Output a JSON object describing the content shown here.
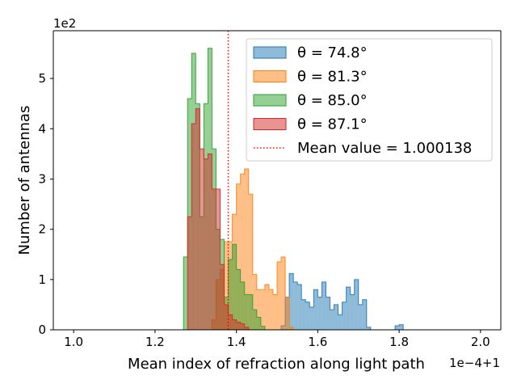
{
  "chart_data": {
    "type": "histogram",
    "xlabel": "Mean index of refraction along light path",
    "ylabel": "Number of antennas",
    "x_offset_label": "1e−4+1",
    "y_scale_label": "1e2",
    "xlim": [
      0.95,
      2.05
    ],
    "ylim": [
      0,
      5.95
    ],
    "xticks": [
      "1.0",
      "1.2",
      "1.4",
      "1.6",
      "1.8",
      "2.0"
    ],
    "xtick_values": [
      1.0,
      1.2,
      1.4,
      1.6,
      1.8,
      2.0
    ],
    "yticks": [
      "0",
      "1",
      "2",
      "3",
      "4",
      "5"
    ],
    "ytick_values": [
      0,
      1,
      2,
      3,
      4,
      5
    ],
    "bins": {
      "start": 1.0,
      "width": 0.01
    },
    "series": [
      {
        "name": "θ = 74.8°",
        "color": "#1f77b4",
        "start": 1.51,
        "values": [
          0.08,
          0.65,
          1.12,
          0.95,
          0.9,
          0.6,
          0.55,
          0.45,
          0.8,
          0.65,
          0.95,
          0.65,
          0.4,
          0.5,
          0.3,
          0.55,
          0.85,
          0.7,
          1.0,
          0.5,
          0.6,
          0.05,
          0,
          0,
          0,
          0,
          0,
          0,
          0.08,
          0.1,
          0
        ]
      },
      {
        "name": "θ = 81.3°",
        "color": "#ff7f0e",
        "start": 1.34,
        "values": [
          0.2,
          1.0,
          1.2,
          1.75,
          1.75,
          2.3,
          2.9,
          3.1,
          3.2,
          2.7,
          1.1,
          0.8,
          0.8,
          0.9,
          0.8,
          0.7,
          1.35,
          1.45,
          0.65,
          0.05
        ]
      },
      {
        "name": "θ = 85.0°",
        "color": "#2ca02c",
        "start": 1.27,
        "values": [
          1.45,
          4.6,
          5.5,
          4.5,
          2.25,
          4.5,
          5.6,
          3.6,
          2.0,
          1.8,
          0.65,
          1.4,
          1.7,
          1.2,
          0.95,
          0.7,
          0.7,
          0.4,
          0.25,
          0.07
        ]
      },
      {
        "name": "θ = 87.1°",
        "color": "#d62728",
        "start": 1.28,
        "values": [
          2.25,
          4.1,
          4.4,
          3.6,
          3.4,
          3.5,
          2.8,
          2.8,
          1.3,
          0.5,
          0.3,
          0.2,
          0.15,
          0.12,
          0.05
        ]
      }
    ],
    "reference_line": {
      "label": "Mean value = 1.000138",
      "x": 1.38,
      "color": "#ff0000",
      "style": "dotted"
    },
    "legend_position": "upper-right"
  }
}
